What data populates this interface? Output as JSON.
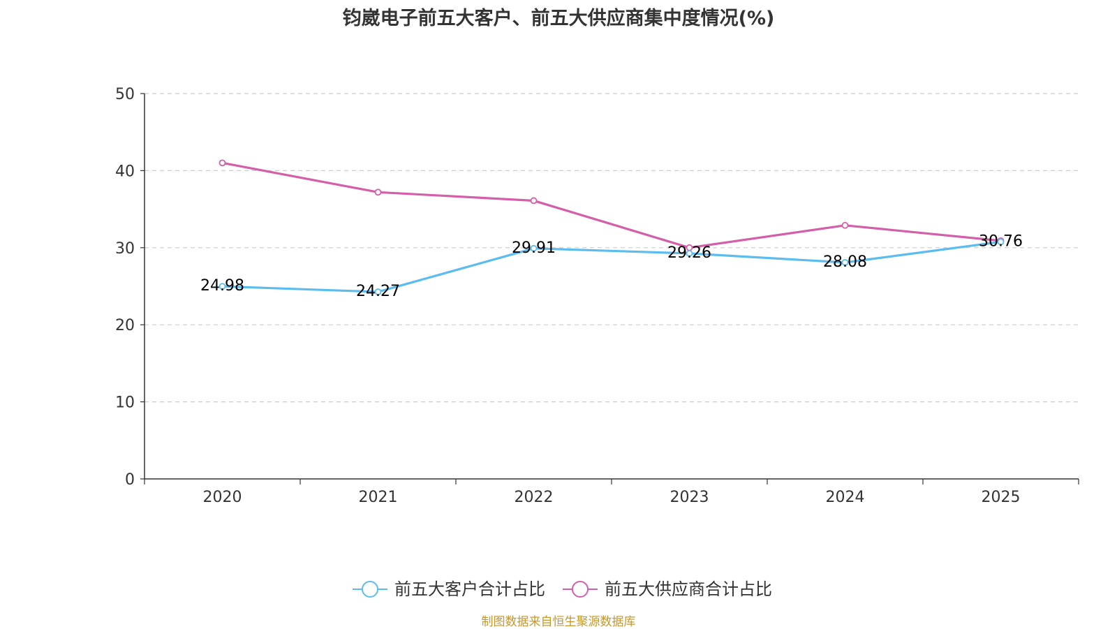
{
  "chart_data": {
    "type": "line",
    "title": "钧崴电子前五大客户、前五大供应商集中度情况(%)",
    "xlabel": "",
    "ylabel": "",
    "categories": [
      "2020",
      "2021",
      "2022",
      "2023",
      "2024",
      "2025"
    ],
    "ylim": [
      0,
      50
    ],
    "yticks": [
      0,
      10,
      20,
      30,
      40,
      50
    ],
    "grid": true,
    "legend_position": "bottom",
    "series": [
      {
        "name": "前五大客户合计占比",
        "color": "#5bbcf0",
        "values": [
          24.98,
          24.27,
          29.91,
          29.26,
          28.08,
          30.76
        ],
        "labels": [
          "24.98",
          "24.27",
          "29.91",
          "29.26",
          "28.08",
          "30.76"
        ]
      },
      {
        "name": "前五大供应商合计占比",
        "color": "#d45fa8",
        "values": [
          41.0,
          37.2,
          36.1,
          30.0,
          32.9,
          30.9
        ]
      }
    ],
    "source": "制图数据来自恒生聚源数据库"
  }
}
